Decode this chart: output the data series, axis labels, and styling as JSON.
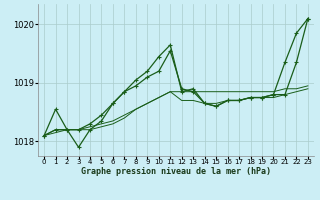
{
  "xlabel": "Graphe pression niveau de la mer (hPa)",
  "background_color": "#cceef5",
  "grid_color": "#aacccc",
  "line_color": "#1a5e1a",
  "xlim": [
    -0.5,
    23.5
  ],
  "ylim": [
    1017.75,
    1020.35
  ],
  "yticks": [
    1018,
    1019,
    1020
  ],
  "ytick_labels": [
    "1018",
    "1019",
    "1020"
  ],
  "hours": [
    0,
    1,
    2,
    3,
    4,
    5,
    6,
    7,
    8,
    9,
    10,
    11,
    12,
    13,
    14,
    15,
    16,
    17,
    18,
    19,
    20,
    21,
    22,
    23
  ],
  "series_main": [
    1018.1,
    1018.55,
    1018.2,
    1018.2,
    1018.3,
    1018.45,
    1018.65,
    1018.85,
    1019.05,
    1019.2,
    1019.45,
    1019.65,
    1018.85,
    1018.9,
    1018.65,
    1018.6,
    1018.7,
    1018.7,
    1018.75,
    1018.75,
    1018.8,
    1019.35,
    1019.85,
    1020.1
  ],
  "series_peak": [
    1018.1,
    1018.2,
    1018.2,
    1017.9,
    1018.2,
    1018.35,
    1018.65,
    1018.85,
    1018.95,
    1019.1,
    1019.2,
    1019.55,
    1018.9,
    1018.85,
    1018.65,
    1018.6,
    1018.7,
    1018.7,
    1018.75,
    1018.75,
    1018.8,
    1018.8,
    1019.35,
    1020.1
  ],
  "series_diag": [
    1018.1,
    1018.15,
    1018.2,
    1018.2,
    1018.25,
    1018.3,
    1018.35,
    1018.45,
    1018.55,
    1018.65,
    1018.75,
    1018.85,
    1018.85,
    1018.85,
    1018.85,
    1018.85,
    1018.85,
    1018.85,
    1018.85,
    1018.85,
    1018.85,
    1018.9,
    1018.9,
    1018.95
  ],
  "series_flat": [
    1018.1,
    1018.2,
    1018.2,
    1018.2,
    1018.2,
    1018.25,
    1018.3,
    1018.4,
    1018.55,
    1018.65,
    1018.75,
    1018.85,
    1018.7,
    1018.7,
    1018.65,
    1018.65,
    1018.7,
    1018.7,
    1018.75,
    1018.75,
    1018.75,
    1018.8,
    1018.85,
    1018.9
  ]
}
